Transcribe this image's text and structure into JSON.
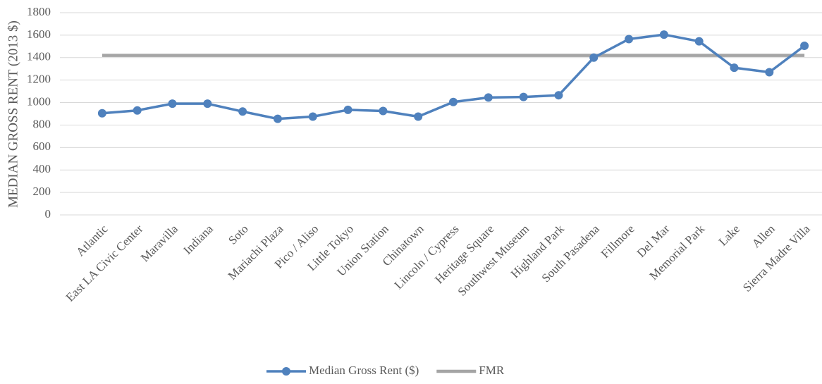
{
  "chart_data": {
    "type": "line",
    "ylabel": "MEDIAN GROSS RENT (2013 $)",
    "categories": [
      "Atlantic",
      "East LA Civic Center",
      "Maravilla",
      "Indiana",
      "Soto",
      "Mariachi Plaza",
      "Pico / Aliso",
      "Little Tokyo",
      "Union Station",
      "Chinatown",
      "Lincoln / Cypress",
      "Heritage Square",
      "Southwest Museum",
      "Highland Park",
      "South Pasadena",
      "Fillmore",
      "Del Mar",
      "Memorial Park",
      "Lake",
      "Allen",
      "Sierra Madre Villa"
    ],
    "series": [
      {
        "name": "Median Gross Rent ($)",
        "color": "#4f81bd",
        "markers": true,
        "values": [
          905,
          930,
          990,
          990,
          920,
          855,
          875,
          935,
          925,
          875,
          1005,
          1045,
          1050,
          1065,
          1400,
          1565,
          1605,
          1545,
          1310,
          1270,
          1505
        ]
      },
      {
        "name": "FMR",
        "color": "#a5a5a5",
        "markers": false,
        "values": [
          1420,
          1420,
          1420,
          1420,
          1420,
          1420,
          1420,
          1420,
          1420,
          1420,
          1420,
          1420,
          1420,
          1420,
          1420,
          1420,
          1420,
          1420,
          1420,
          1420,
          1420
        ]
      }
    ],
    "ylim": [
      0,
      1800
    ],
    "yticks": [
      0,
      200,
      400,
      600,
      800,
      1000,
      1200,
      1400,
      1600,
      1800
    ],
    "grid": true,
    "legend": "bottom"
  }
}
